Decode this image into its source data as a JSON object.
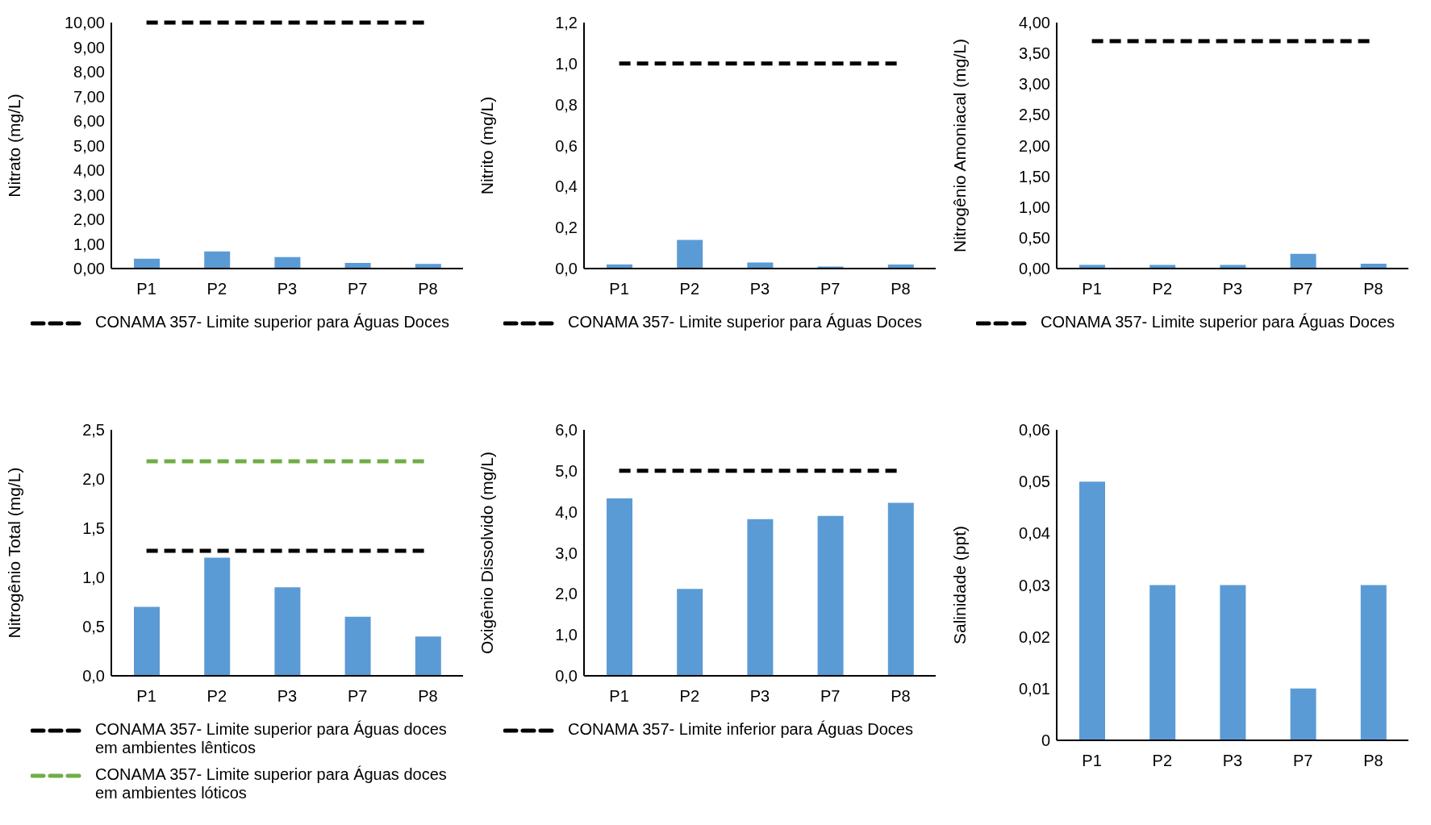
{
  "chart_data": [
    {
      "type": "bar",
      "categories": [
        "P1",
        "P2",
        "P3",
        "P7",
        "P8"
      ],
      "values": [
        0.4,
        0.7,
        0.47,
        0.23,
        0.19
      ],
      "color": "#5b9bd5",
      "ylabel": "Nitrato (mg/L)",
      "ylim": [
        0,
        10
      ],
      "yticks": [
        {
          "value": 0,
          "label": "0,00"
        },
        {
          "value": 1,
          "label": "1,00"
        },
        {
          "value": 2,
          "label": "2,00"
        },
        {
          "value": 3,
          "label": "3,00"
        },
        {
          "value": 4,
          "label": "4,00"
        },
        {
          "value": 5,
          "label": "5,00"
        },
        {
          "value": 6,
          "label": "6,00"
        },
        {
          "value": 7,
          "label": "7,00"
        },
        {
          "value": 8,
          "label": "8,00"
        },
        {
          "value": 9,
          "label": "9,00"
        },
        {
          "value": 10,
          "label": "10,00"
        }
      ],
      "grid": false,
      "legend": "bottom",
      "ref_lines": [
        {
          "axis": "y",
          "value": 10,
          "label": "CONAMA 357- Limite superior para Águas Doces",
          "color": "#000000",
          "line_style": "dashed"
        }
      ]
    },
    {
      "type": "bar",
      "categories": [
        "P1",
        "P2",
        "P3",
        "P7",
        "P8"
      ],
      "values": [
        0.02,
        0.14,
        0.03,
        0.01,
        0.02
      ],
      "color": "#5b9bd5",
      "ylabel": "Nitrito (mg/L)",
      "ylim": [
        0,
        1.2
      ],
      "yticks": [
        {
          "value": 0,
          "label": "0,0"
        },
        {
          "value": 0.2,
          "label": "0,2"
        },
        {
          "value": 0.4,
          "label": "0,4"
        },
        {
          "value": 0.6,
          "label": "0,6"
        },
        {
          "value": 0.8,
          "label": "0,8"
        },
        {
          "value": 1,
          "label": "1,0"
        },
        {
          "value": 1.2,
          "label": "1,2"
        }
      ],
      "grid": false,
      "legend": "bottom",
      "ref_lines": [
        {
          "axis": "y",
          "value": 1,
          "label": "CONAMA 357- Limite superior para Águas Doces",
          "color": "#000000",
          "line_style": "dashed"
        }
      ]
    },
    {
      "type": "bar",
      "categories": [
        "P1",
        "P2",
        "P3",
        "P7",
        "P8"
      ],
      "values": [
        0.06,
        0.06,
        0.06,
        0.24,
        0.08
      ],
      "color": "#5b9bd5",
      "ylabel": "Nitrogênio Amoniacal (mg/L)",
      "ylim": [
        0,
        4
      ],
      "yticks": [
        {
          "value": 0,
          "label": "0,00"
        },
        {
          "value": 0.5,
          "label": "0,50"
        },
        {
          "value": 1,
          "label": "1,00"
        },
        {
          "value": 1.5,
          "label": "1,50"
        },
        {
          "value": 2,
          "label": "2,00"
        },
        {
          "value": 2.5,
          "label": "2,50"
        },
        {
          "value": 3,
          "label": "3,00"
        },
        {
          "value": 3.5,
          "label": "3,50"
        },
        {
          "value": 4,
          "label": "4,00"
        }
      ],
      "grid": false,
      "legend": "bottom",
      "ref_lines": [
        {
          "axis": "y",
          "value": 3.7,
          "label": "CONAMA 357- Limite superior para Águas Doces",
          "color": "#000000",
          "line_style": "dashed"
        }
      ]
    },
    {
      "type": "bar",
      "categories": [
        "P1",
        "P2",
        "P3",
        "P7",
        "P8"
      ],
      "values": [
        0.7,
        1.2,
        0.9,
        0.6,
        0.4
      ],
      "color": "#5b9bd5",
      "ylabel": "Nitrogênio Total (mg/L)",
      "ylim": [
        0,
        2.5
      ],
      "yticks": [
        {
          "value": 0,
          "label": "0,0"
        },
        {
          "value": 0.5,
          "label": "0,5"
        },
        {
          "value": 1,
          "label": "1,0"
        },
        {
          "value": 1.5,
          "label": "1,5"
        },
        {
          "value": 2,
          "label": "2,0"
        },
        {
          "value": 2.5,
          "label": "2,5"
        }
      ],
      "grid": false,
      "legend": "bottom",
      "ref_lines": [
        {
          "axis": "y",
          "value": 1.27,
          "label": "CONAMA 357- Limite superior para Águas doces em ambientes lênticos",
          "color": "#000000",
          "line_style": "dashed"
        },
        {
          "axis": "y",
          "value": 2.18,
          "label": "CONAMA 357- Limite superior para Águas doces em ambientes lóticos",
          "color": "#70ad47",
          "line_style": "dashed"
        }
      ]
    },
    {
      "type": "bar",
      "categories": [
        "P1",
        "P2",
        "P3",
        "P7",
        "P8"
      ],
      "values": [
        4.33,
        2.12,
        3.82,
        3.9,
        4.22
      ],
      "color": "#5b9bd5",
      "ylabel": "Oxigênio Dissolvido (mg/L)",
      "ylim": [
        0,
        6
      ],
      "yticks": [
        {
          "value": 0,
          "label": "0,0"
        },
        {
          "value": 1,
          "label": "1,0"
        },
        {
          "value": 2,
          "label": "2,0"
        },
        {
          "value": 3,
          "label": "3,0"
        },
        {
          "value": 4,
          "label": "4,0"
        },
        {
          "value": 5,
          "label": "5,0"
        },
        {
          "value": 6,
          "label": "6,0"
        }
      ],
      "grid": false,
      "legend": "bottom",
      "ref_lines": [
        {
          "axis": "y",
          "value": 5,
          "label": "CONAMA 357- Limite inferior para Águas Doces",
          "color": "#000000",
          "line_style": "dashed"
        }
      ]
    },
    {
      "type": "bar",
      "categories": [
        "P1",
        "P2",
        "P3",
        "P7",
        "P8"
      ],
      "values": [
        0.05,
        0.03,
        0.03,
        0.01,
        0.03
      ],
      "color": "#5b9bd5",
      "ylabel": "Salinidade (ppt)",
      "ylim": [
        0,
        0.06
      ],
      "yticks": [
        0,
        {
          "value": 0.01,
          "label": "0,01"
        },
        {
          "value": 0.02,
          "label": "0,02"
        },
        {
          "value": 0.03,
          "label": "0,03"
        },
        {
          "value": 0.04,
          "label": "0,04"
        },
        {
          "value": 0.05,
          "label": "0,05"
        },
        {
          "value": 0.06,
          "label": "0,06"
        }
      ],
      "grid": false
    }
  ]
}
